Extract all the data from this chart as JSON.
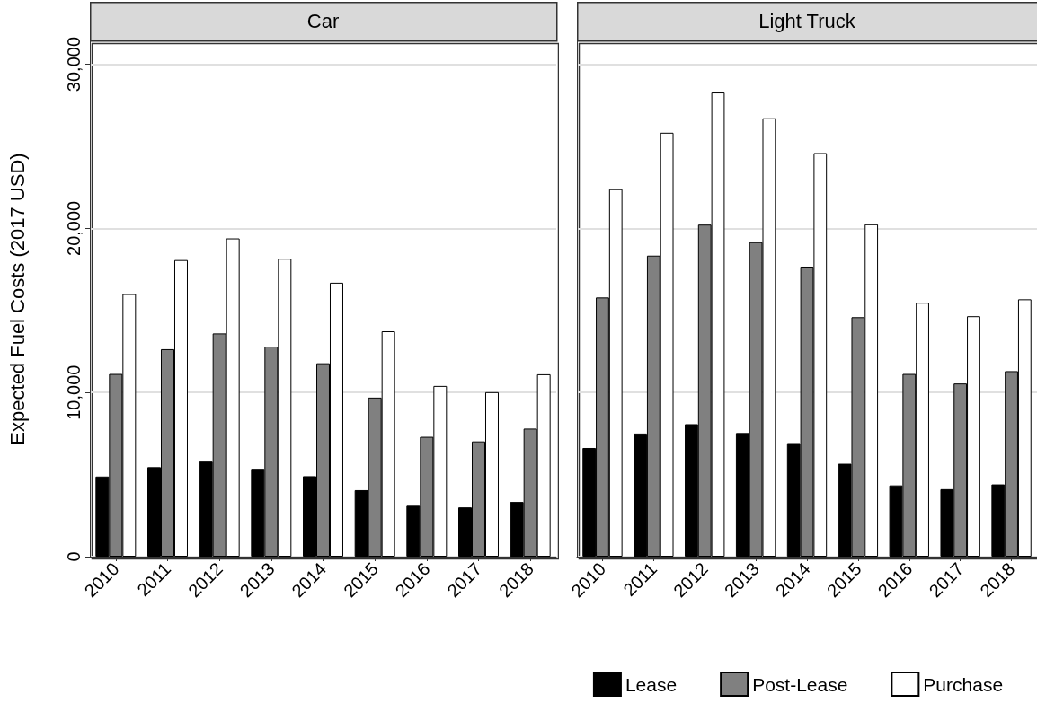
{
  "chart_data": [
    {
      "type": "bar",
      "title": "Car",
      "ylabel": "Expected Fuel Costs (2017 USD)",
      "categories": [
        "2010",
        "2011",
        "2012",
        "2013",
        "2014",
        "2015",
        "2016",
        "2017",
        "2018"
      ],
      "series": [
        {
          "color": "#000000",
          "values": [
            4880,
            5450,
            5790,
            5350,
            4900,
            4050,
            3100,
            3000,
            3330
          ]
        },
        {
          "color": "#808080",
          "values": [
            11130,
            12640,
            13600,
            12800,
            11780,
            9690,
            7300,
            7020,
            7800
          ]
        },
        {
          "color": "#ffffff",
          "values": [
            16000,
            18070,
            19390,
            18150,
            16690,
            13730,
            10400,
            10020,
            11110
          ]
        }
      ],
      "ylim": [
        0,
        31400
      ],
      "yticks": [
        0,
        {
          "value": 10000,
          "label": "10,000"
        },
        {
          "value": 20000,
          "label": "20,000"
        },
        {
          "value": 30000,
          "label": "30,000"
        }
      ],
      "grid": "y",
      "legend": false
    },
    {
      "type": "bar",
      "title": "Light Truck",
      "categories": [
        "2010",
        "2011",
        "2012",
        "2013",
        "2014",
        "2015",
        "2016",
        "2017",
        "2018"
      ],
      "series": [
        {
          "name": "Lease",
          "color": "#000000",
          "values": [
            6620,
            7500,
            8070,
            7530,
            6920,
            5660,
            4340,
            4110,
            4400
          ]
        },
        {
          "name": "Post-Lease",
          "color": "#808080",
          "values": [
            15790,
            18340,
            20230,
            19160,
            17670,
            14590,
            11130,
            10550,
            11300
          ]
        },
        {
          "name": "Purchase",
          "color": "#ffffff",
          "values": [
            22390,
            25830,
            28280,
            26710,
            24590,
            20250,
            15470,
            14650,
            15680
          ]
        }
      ],
      "ylim": [
        0,
        31400
      ],
      "yticks": [
        {
          "value": 0,
          "label": null
        },
        {
          "value": 10000,
          "label": null
        },
        {
          "value": 20000,
          "label": null
        },
        {
          "value": 30000,
          "label": null
        }
      ],
      "grid": "y",
      "legend": "bottom",
      "tick_labels": "x"
    }
  ]
}
